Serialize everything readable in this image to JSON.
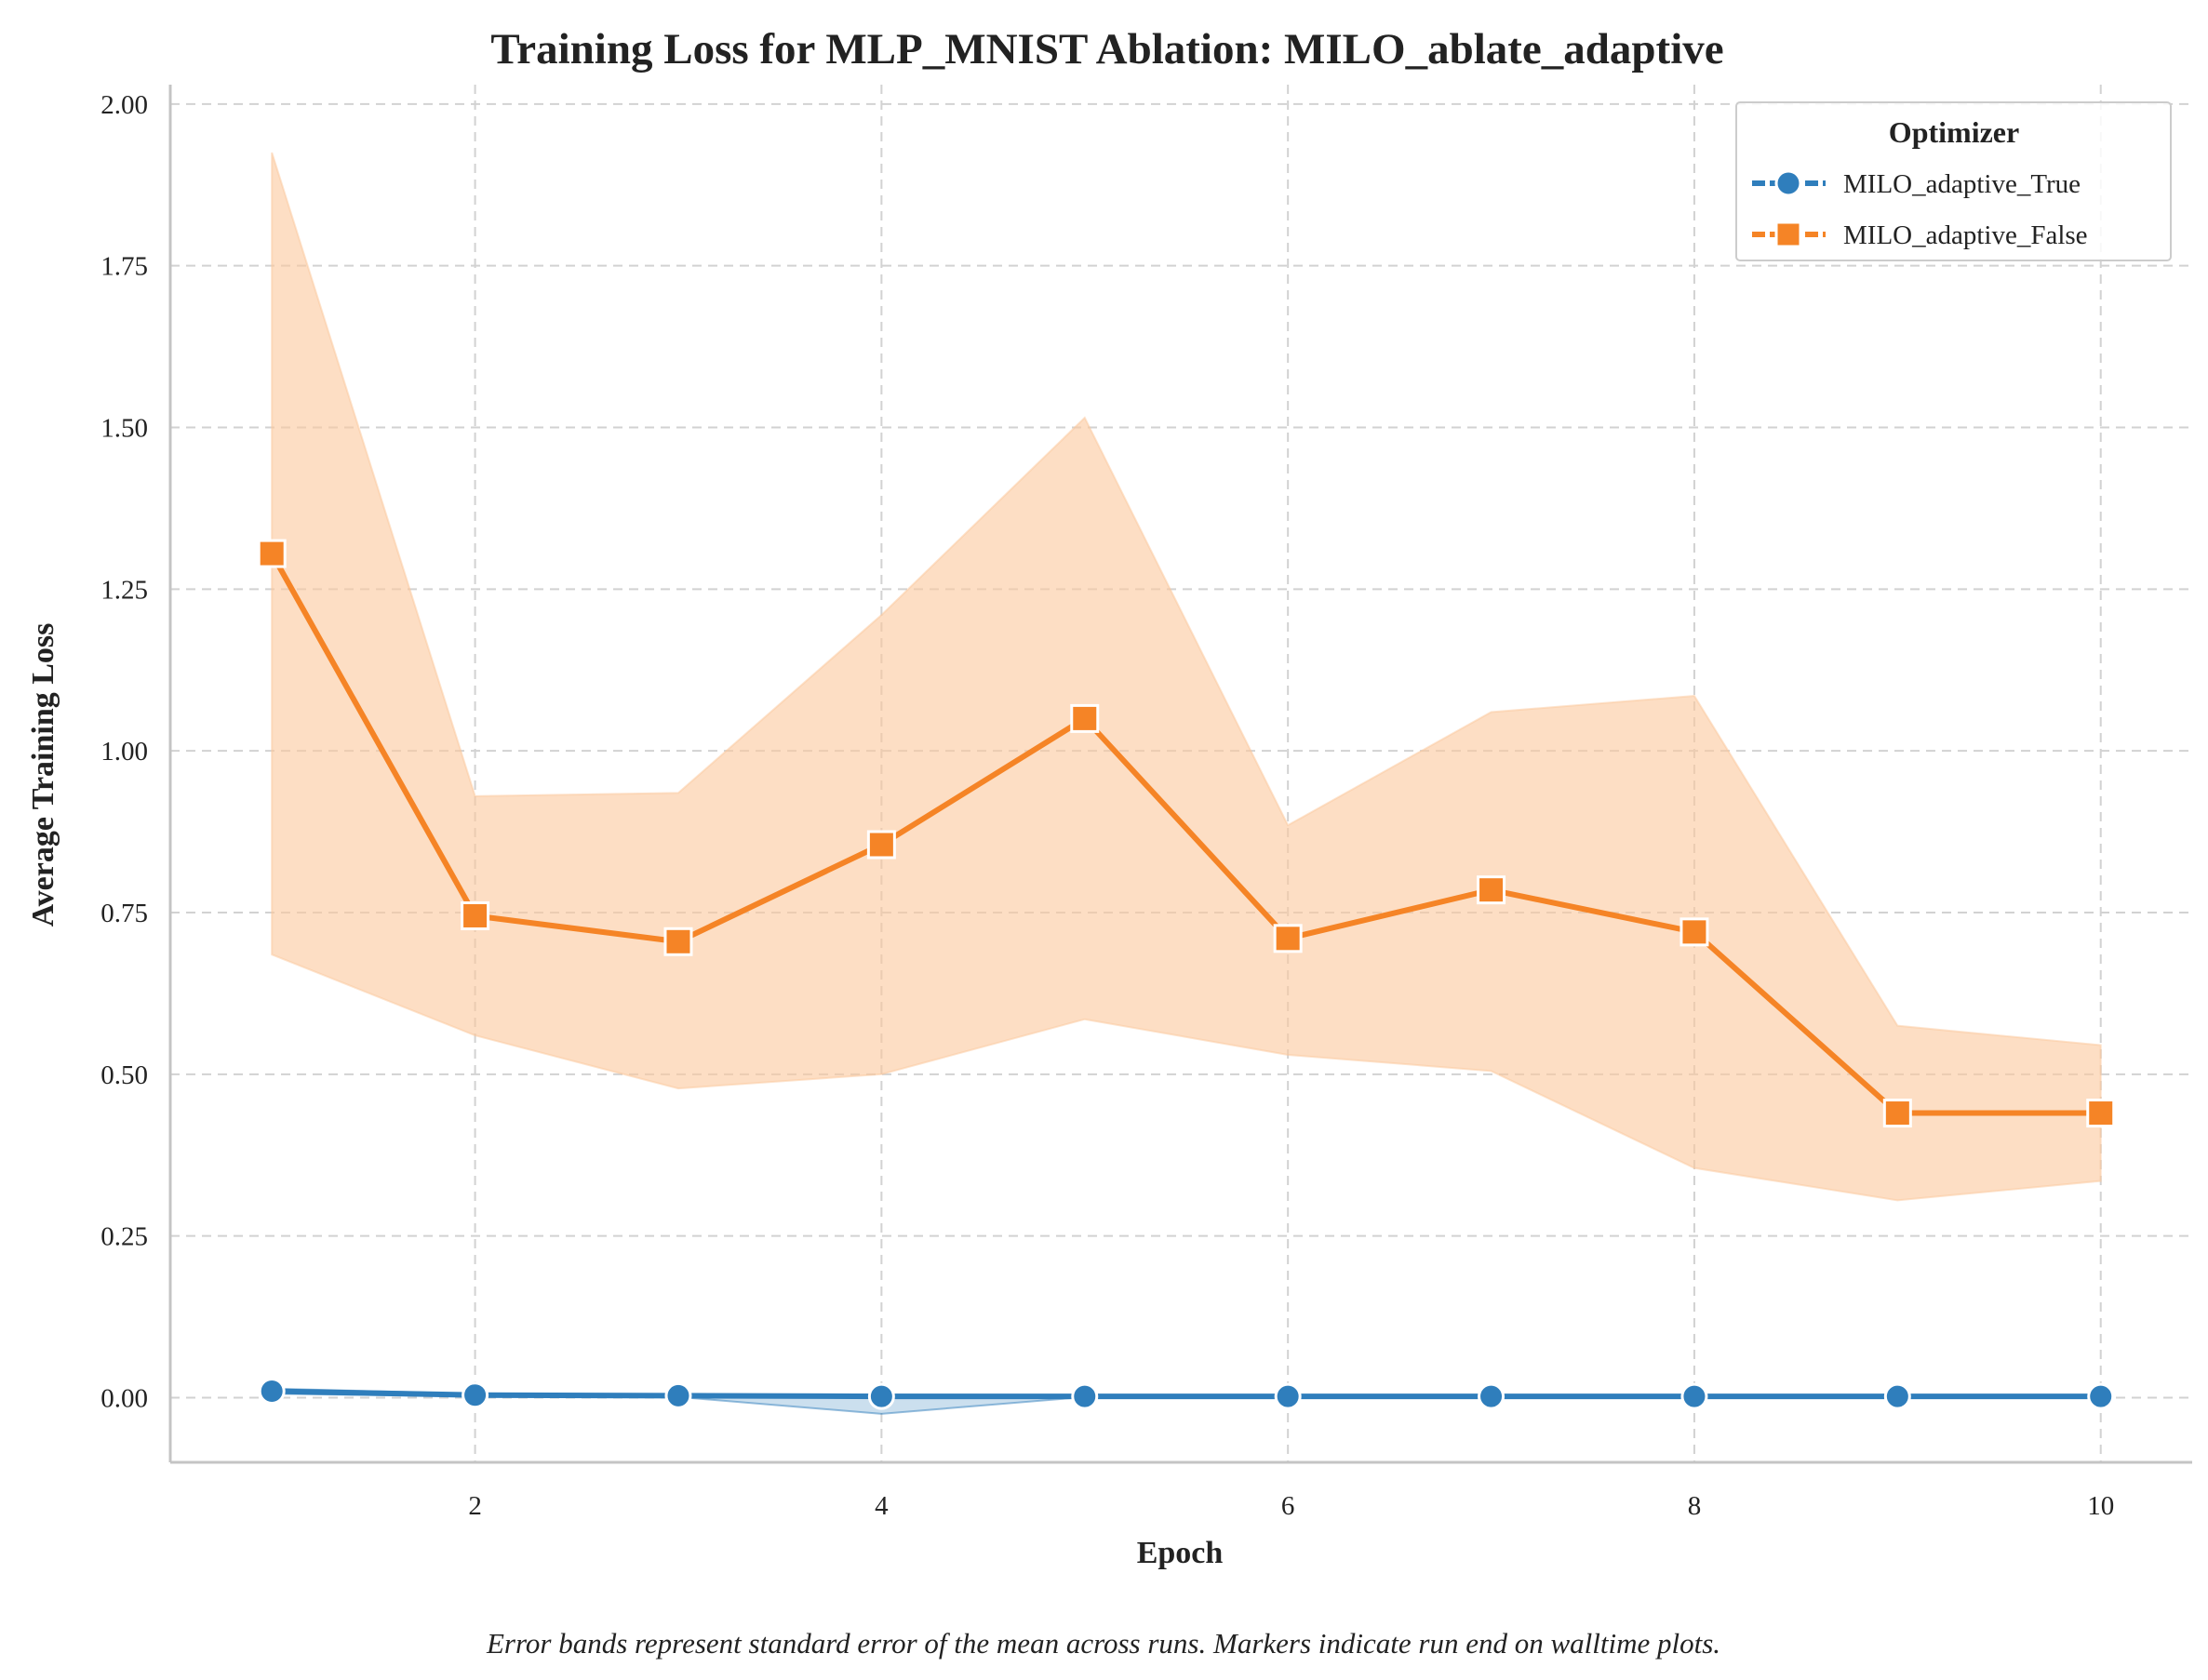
{
  "chart_data": {
    "type": "line",
    "title": "Training Loss for MLP_MNIST Ablation: MILO_ablate_adaptive",
    "xlabel": "Epoch",
    "ylabel": "Average Training Loss",
    "xlim": [
      0.5,
      10.45
    ],
    "ylim": [
      -0.1,
      2.03
    ],
    "xticks": [
      2,
      4,
      6,
      8,
      10
    ],
    "yticks": [
      0.0,
      0.25,
      0.5,
      0.75,
      1.0,
      1.25,
      1.5,
      1.75,
      2.0
    ],
    "ytick_labels": [
      "0.00",
      "0.25",
      "0.50",
      "0.75",
      "1.00",
      "1.25",
      "1.50",
      "1.75",
      "2.00"
    ],
    "grid": true,
    "x": [
      1,
      2,
      3,
      4,
      5,
      6,
      7,
      8,
      9,
      10
    ],
    "legend": {
      "title": "Optimizer",
      "position": "top-right"
    },
    "series": [
      {
        "name": "MILO_adaptive_True",
        "color": "#2f7ebc",
        "marker": "circle",
        "values": [
          0.01,
          0.004,
          0.003,
          0.002,
          0.002,
          0.002,
          0.002,
          0.002,
          0.002,
          0.002
        ],
        "band_lower": [
          0.006,
          0.002,
          0.001,
          -0.025,
          0.001,
          0.001,
          0.001,
          0.001,
          0.001,
          0.001
        ],
        "band_upper": [
          0.014,
          0.006,
          0.005,
          0.005,
          0.004,
          0.003,
          0.003,
          0.003,
          0.003,
          0.003
        ]
      },
      {
        "name": "MILO_adaptive_False",
        "color": "#f58426",
        "band_color": "#fbc89c",
        "marker": "square",
        "values": [
          1.305,
          0.745,
          0.705,
          0.855,
          1.05,
          0.71,
          0.785,
          0.72,
          0.44,
          0.44
        ],
        "band_lower": [
          0.685,
          0.56,
          0.478,
          0.5,
          0.585,
          0.53,
          0.505,
          0.355,
          0.305,
          0.335
        ],
        "band_upper": [
          1.925,
          0.93,
          0.935,
          1.21,
          1.515,
          0.885,
          1.06,
          1.085,
          0.575,
          0.545
        ]
      }
    ]
  },
  "caption": "Error bands represent standard error of the mean across runs. Markers indicate run end on walltime plots."
}
